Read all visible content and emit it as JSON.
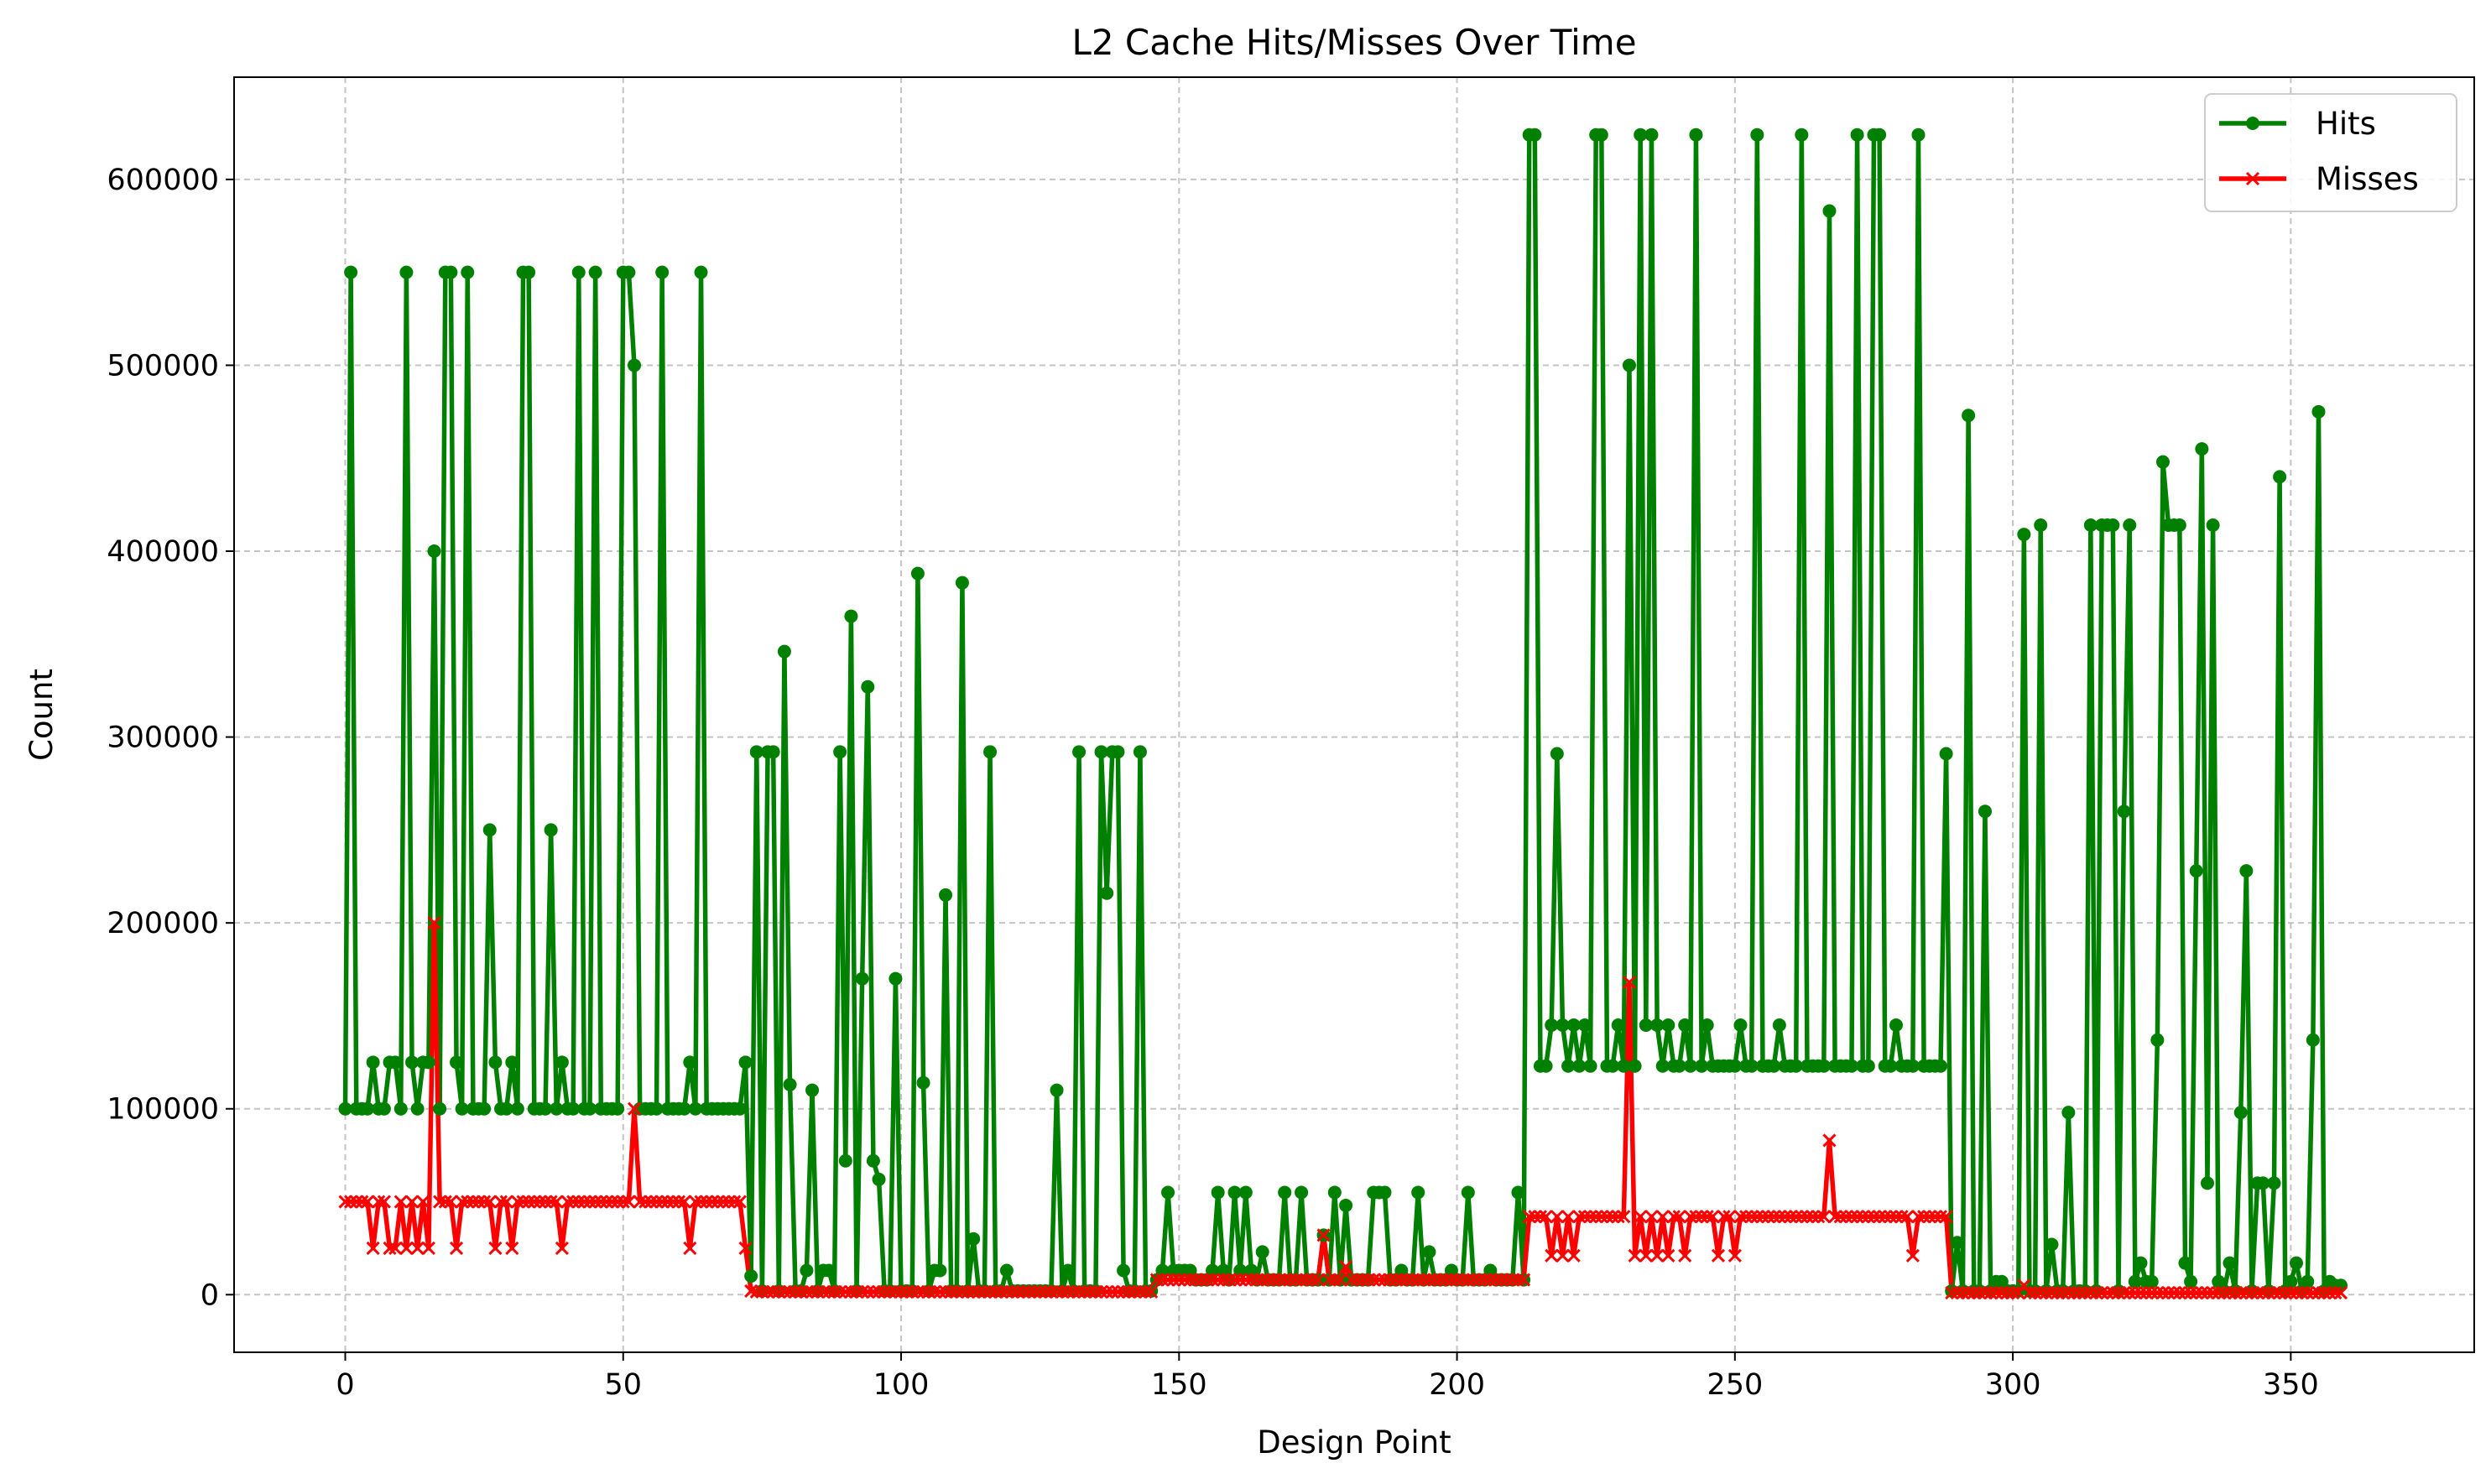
{
  "chart_data": {
    "type": "line",
    "title": "L2 Cache Hits/Misses Over Time",
    "xlabel": "Design Point",
    "ylabel": "Count",
    "xlim": [
      -20,
      383
    ],
    "ylim": [
      -31000,
      655000
    ],
    "xticks": [
      0,
      50,
      100,
      150,
      200,
      250,
      300,
      350
    ],
    "yticks": [
      0,
      100000,
      200000,
      300000,
      400000,
      500000,
      600000
    ],
    "grid": true,
    "legend_position": "top-right",
    "series": [
      {
        "name": "Hits",
        "color": "#008000",
        "marker": "circle",
        "values": [
          100000,
          550000,
          100000,
          100000,
          100000,
          125000,
          100000,
          100000,
          125000,
          125000,
          100000,
          550000,
          125000,
          100000,
          125000,
          125000,
          400000,
          100000,
          550000,
          550000,
          125000,
          100000,
          550000,
          100000,
          100000,
          100000,
          250000,
          125000,
          100000,
          100000,
          125000,
          100000,
          550000,
          550000,
          100000,
          100000,
          100000,
          250000,
          100000,
          125000,
          100000,
          100000,
          550000,
          100000,
          100000,
          550000,
          100000,
          100000,
          100000,
          100000,
          550000,
          550000,
          500000,
          100000,
          100000,
          100000,
          100000,
          550000,
          100000,
          100000,
          100000,
          100000,
          125000,
          100000,
          550000,
          100000,
          100000,
          100000,
          100000,
          100000,
          100000,
          100000,
          125000,
          10000,
          292000,
          2000,
          292000,
          292000,
          2000,
          346000,
          113000,
          2000,
          2000,
          13000,
          110000,
          2000,
          13000,
          13000,
          2000,
          292000,
          72000,
          365000,
          2000,
          170000,
          327000,
          72000,
          62000,
          2000,
          2000,
          170000,
          2000,
          2000,
          2000,
          388000,
          114000,
          2000,
          13000,
          13000,
          215000,
          2000,
          2000,
          383000,
          2000,
          30000,
          2000,
          2000,
          292000,
          2000,
          2000,
          13000,
          2000,
          2000,
          2000,
          2000,
          2000,
          2000,
          2000,
          2000,
          110000,
          2000,
          13000,
          2000,
          292000,
          2000,
          2000,
          2000,
          292000,
          216000,
          292000,
          292000,
          13000,
          2000,
          2000,
          292000,
          2000,
          2000,
          8000,
          13000,
          55000,
          13000,
          13000,
          13000,
          13000,
          8000,
          8000,
          8000,
          13000,
          55000,
          13000,
          8000,
          55000,
          13000,
          55000,
          13000,
          8000,
          23000,
          8000,
          8000,
          8000,
          55000,
          8000,
          8000,
          55000,
          8000,
          8000,
          8000,
          32000,
          8000,
          55000,
          8000,
          48000,
          8000,
          8000,
          8000,
          8000,
          55000,
          55000,
          55000,
          8000,
          8000,
          13000,
          8000,
          8000,
          55000,
          8000,
          23000,
          8000,
          8000,
          8000,
          13000,
          8000,
          8000,
          55000,
          8000,
          8000,
          8000,
          13000,
          8000,
          8000,
          8000,
          8000,
          55000,
          8000,
          624000,
          624000,
          123000,
          123000,
          145000,
          291000,
          145000,
          123000,
          145000,
          123000,
          145000,
          123000,
          624000,
          624000,
          123000,
          123000,
          145000,
          123000,
          500000,
          123000,
          624000,
          145000,
          624000,
          145000,
          123000,
          145000,
          123000,
          123000,
          145000,
          123000,
          624000,
          123000,
          145000,
          123000,
          123000,
          123000,
          123000,
          123000,
          145000,
          123000,
          123000,
          624000,
          123000,
          123000,
          123000,
          145000,
          123000,
          123000,
          123000,
          624000,
          123000,
          123000,
          123000,
          123000,
          583000,
          123000,
          123000,
          123000,
          123000,
          624000,
          123000,
          123000,
          624000,
          624000,
          123000,
          123000,
          145000,
          123000,
          123000,
          123000,
          624000,
          123000,
          123000,
          123000,
          123000,
          291000,
          2000,
          28000,
          2000,
          473000,
          2000,
          2000,
          260000,
          2000,
          7000,
          7000,
          2000,
          2000,
          2000,
          409000,
          2000,
          2000,
          414000,
          2000,
          27000,
          2000,
          2000,
          98000,
          2000,
          2000,
          2000,
          414000,
          2000,
          414000,
          414000,
          414000,
          2000,
          260000,
          414000,
          7000,
          17000,
          7000,
          7000,
          137000,
          448000,
          414000,
          414000,
          414000,
          17000,
          7000,
          228000,
          455000,
          60000,
          414000,
          7000,
          2000,
          17000,
          2000,
          98000,
          228000,
          2000,
          60000,
          60000,
          2000,
          60000,
          440000,
          2000,
          7000,
          17000,
          2000,
          7000,
          137000,
          475000,
          2000,
          7000,
          5000,
          5000
        ]
      },
      {
        "name": "Misses",
        "color": "#ff0000",
        "marker": "x",
        "values": [
          50000,
          50000,
          50000,
          50000,
          50000,
          25000,
          50000,
          50000,
          25000,
          25000,
          50000,
          25000,
          50000,
          25000,
          50000,
          25000,
          200000,
          50000,
          50000,
          50000,
          25000,
          50000,
          50000,
          50000,
          50000,
          50000,
          50000,
          25000,
          50000,
          50000,
          25000,
          50000,
          50000,
          50000,
          50000,
          50000,
          50000,
          50000,
          50000,
          25000,
          50000,
          50000,
          50000,
          50000,
          50000,
          50000,
          50000,
          50000,
          50000,
          50000,
          50000,
          50000,
          100000,
          50000,
          50000,
          50000,
          50000,
          50000,
          50000,
          50000,
          50000,
          50000,
          25000,
          50000,
          50000,
          50000,
          50000,
          50000,
          50000,
          50000,
          50000,
          50000,
          25000,
          2000,
          1500,
          1500,
          1500,
          1500,
          1500,
          1500,
          1500,
          1500,
          1500,
          1500,
          1500,
          1500,
          1500,
          1500,
          1500,
          1500,
          1500,
          1500,
          1500,
          1500,
          1500,
          1500,
          1500,
          1500,
          1500,
          1500,
          1500,
          1500,
          1500,
          1500,
          1500,
          1500,
          1500,
          1500,
          1500,
          1500,
          1500,
          1500,
          1500,
          1500,
          1500,
          1500,
          1500,
          1500,
          1500,
          1500,
          1500,
          1500,
          1500,
          1500,
          1500,
          1500,
          1500,
          1500,
          1500,
          1500,
          1500,
          1500,
          1500,
          1500,
          1500,
          1500,
          1500,
          1500,
          1500,
          1500,
          1500,
          1500,
          1500,
          1500,
          1500,
          1500,
          8000,
          8000,
          8000,
          8000,
          8000,
          8000,
          8000,
          8000,
          8000,
          8000,
          8000,
          8000,
          8000,
          8000,
          8000,
          8000,
          8000,
          8000,
          8000,
          8000,
          8000,
          8000,
          8000,
          8000,
          8000,
          8000,
          8000,
          8000,
          8000,
          8000,
          32000,
          8000,
          8000,
          8000,
          15000,
          8000,
          8000,
          8000,
          8000,
          8000,
          8000,
          8000,
          8000,
          8000,
          8000,
          8000,
          8000,
          8000,
          8000,
          8000,
          8000,
          8000,
          8000,
          8000,
          8000,
          8000,
          8000,
          8000,
          8000,
          8000,
          8000,
          8000,
          8000,
          8000,
          8000,
          8000,
          8000,
          42000,
          42000,
          42000,
          42000,
          21000,
          42000,
          21000,
          42000,
          21000,
          42000,
          42000,
          42000,
          42000,
          42000,
          42000,
          42000,
          42000,
          42000,
          168000,
          21000,
          42000,
          21000,
          42000,
          21000,
          42000,
          21000,
          42000,
          42000,
          21000,
          42000,
          42000,
          42000,
          42000,
          42000,
          21000,
          42000,
          42000,
          21000,
          42000,
          42000,
          42000,
          42000,
          42000,
          42000,
          42000,
          42000,
          42000,
          42000,
          42000,
          42000,
          42000,
          42000,
          42000,
          42000,
          83000,
          42000,
          42000,
          42000,
          42000,
          42000,
          42000,
          42000,
          42000,
          42000,
          42000,
          42000,
          42000,
          42000,
          42000,
          21000,
          42000,
          42000,
          42000,
          42000,
          42000,
          42000,
          1000,
          1000,
          1000,
          1000,
          1000,
          1000,
          1000,
          1000,
          1000,
          1000,
          1000,
          1000,
          1000,
          5000,
          1000,
          1000,
          1000,
          1000,
          1000,
          1000,
          1000,
          1000,
          1000,
          1000,
          1000,
          1000,
          1000,
          1000,
          1000,
          1000,
          1000,
          1000,
          1000,
          1000,
          1000,
          1000,
          1000,
          1000,
          1000,
          1000,
          1000,
          1000,
          1000,
          1000,
          1000,
          1000,
          1000,
          1000,
          1000,
          1000,
          1000,
          1000,
          1000,
          1000,
          1000,
          1000,
          1000,
          1000,
          1000,
          1000,
          1000,
          1000,
          1000,
          1000,
          1000,
          1000,
          1000,
          1000,
          1000,
          1000,
          1000
        ]
      }
    ]
  }
}
